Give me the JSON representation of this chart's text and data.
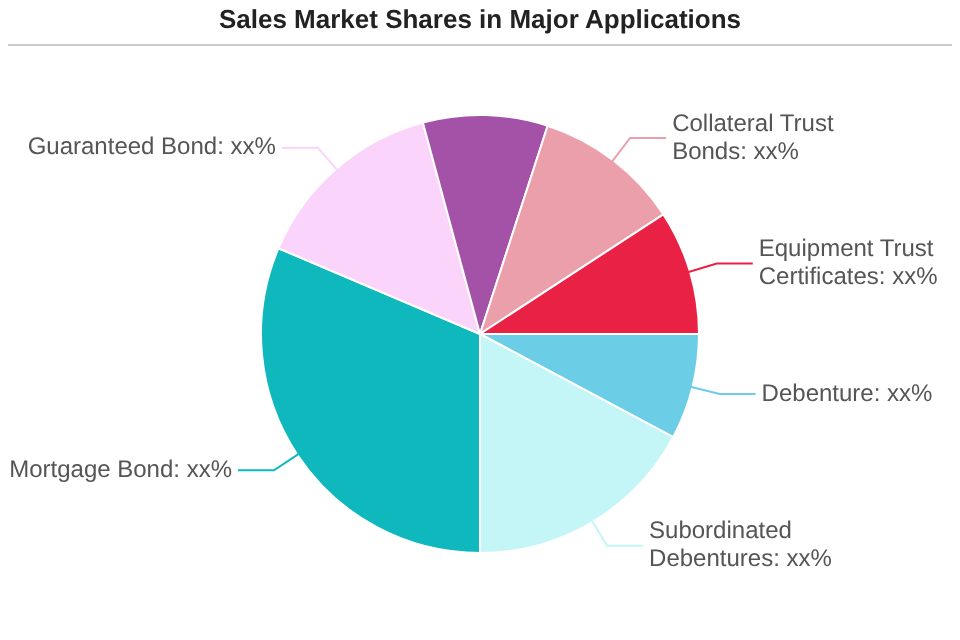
{
  "chart_data": {
    "type": "pie",
    "title": "Sales Market Shares in Major Applications",
    "categories": [
      "Debenture",
      "Subordinated Debentures",
      "Mortgage Bond",
      "Guaranteed Bond",
      null,
      "Collateral Trust Bonds",
      "Equipment Trust Certificates"
    ],
    "values": [
      7.8,
      17.2,
      31.4,
      14.4,
      9.2,
      10.8,
      9.2
    ],
    "value_labels": [
      "xx%",
      "xx%",
      "xx%",
      "xx%",
      null,
      "xx%",
      "xx%"
    ],
    "colors": [
      "#6ccde6",
      "#c4f5f7",
      "#0eb8bd",
      "#fad4fa",
      "#a352a8",
      "#eb9fab",
      "#e82145"
    ],
    "legend": false
  }
}
